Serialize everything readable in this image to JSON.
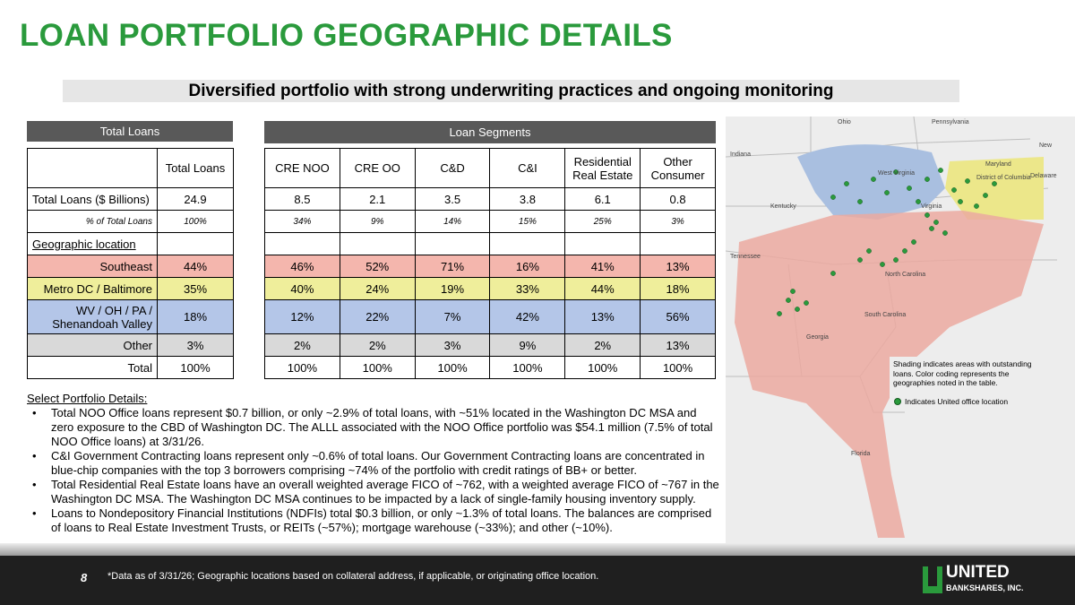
{
  "header": {
    "title": "LOAN PORTFOLIO GEOGRAPHIC DETAILS",
    "subtitle": "Diversified portfolio with strong underwriting practices and ongoing monitoring"
  },
  "tables": {
    "total_header": "Total Loans",
    "segments_header": "Loan Segments",
    "columns": {
      "total": "Total Loans",
      "segments": [
        "CRE NOO",
        "CRE OO",
        "C&D",
        "C&I",
        "Residential Real Estate",
        "Other Consumer"
      ]
    },
    "rows": [
      {
        "label": "Total Loans ($ Billions)",
        "total": "24.9",
        "segments": [
          "8.5",
          "2.1",
          "3.5",
          "3.8",
          "6.1",
          "0.8"
        ]
      },
      {
        "label": "% of Total Loans",
        "total": "100%",
        "segments": [
          "34%",
          "9%",
          "14%",
          "15%",
          "25%",
          "3%"
        ]
      },
      {
        "label": "Geographic location"
      },
      {
        "label": "Southeast",
        "total": "44%",
        "segments": [
          "46%",
          "52%",
          "71%",
          "16%",
          "41%",
          "13%"
        ]
      },
      {
        "label": "Metro DC / Baltimore",
        "total": "35%",
        "segments": [
          "40%",
          "24%",
          "19%",
          "33%",
          "44%",
          "18%"
        ]
      },
      {
        "label": "WV / OH / PA / Shenandoah Valley",
        "total": "18%",
        "segments": [
          "12%",
          "22%",
          "7%",
          "42%",
          "13%",
          "56%"
        ]
      },
      {
        "label": "Other",
        "total": "3%",
        "segments": [
          "2%",
          "2%",
          "3%",
          "9%",
          "2%",
          "13%"
        ]
      },
      {
        "label": "Total",
        "total": "100%",
        "segments": [
          "100%",
          "100%",
          "100%",
          "100%",
          "100%",
          "100%"
        ]
      }
    ]
  },
  "details": {
    "heading": "Select Portfolio Details:",
    "bullets": [
      "Total NOO Office loans represent $0.7 billion, or only ~2.9% of total loans, with ~51% located in the Washington DC MSA and zero exposure to the CBD of Washington DC. The ALLL associated with the NOO Office portfolio was $54.1 million (7.5% of total NOO Office loans) at 3/31/26.",
      "C&I Government Contracting loans represent only ~0.6% of total loans. Our Government Contracting loans are concentrated in blue-chip companies with the top 3 borrowers comprising ~74% of the portfolio with credit ratings of BB+ or better.",
      "Total Residential Real Estate loans have an overall weighted average FICO of ~762, with a weighted average FICO of ~767 in the Washington DC MSA. The Washington DC MSA continues to be impacted by a lack of single-family housing inventory supply.",
      "Loans to Nondepository Financial Institutions (NDFIs) total $0.3 billion, or only ~1.3% of total loans. The balances are comprised of loans to Real Estate Investment Trusts, or REITs (~57%); mortgage warehouse (~33%); and other (~10%)."
    ]
  },
  "map": {
    "labels": [
      "Ohio",
      "Pennsylvania",
      "Indiana",
      "New",
      "West Virginia",
      "Maryland",
      "Delaware",
      "District of Columbia",
      "Kentucky",
      "Virginia",
      "Tennessee",
      "North Carolina",
      "South Carolina",
      "Georgia",
      "Florida"
    ],
    "legend": {
      "shading": "Shading indicates areas with outstanding loans. Color coding represents the geographies noted in the table.",
      "office": "Indicates United office location"
    }
  },
  "footer": {
    "page": "8",
    "note": "*Data as of 3/31/26; Geographic locations based on collateral address, if applicable, or originating office location.",
    "logo_name": "UNITED",
    "logo_sub": "BANKSHARES, INC."
  }
}
